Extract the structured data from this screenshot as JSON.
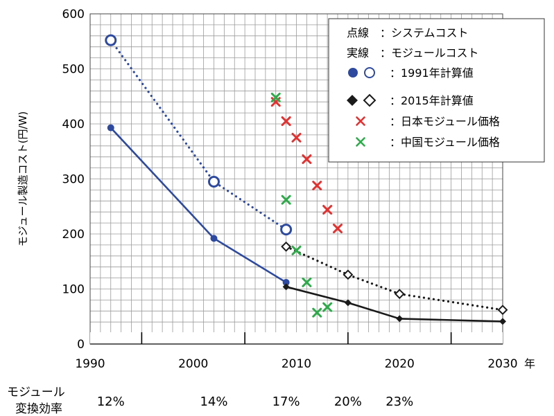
{
  "chart_data": {
    "type": "line",
    "title": "",
    "xlabel": "年",
    "ylabel": "モジュール製造コスト(円/W)",
    "xlim": [
      1990,
      2030
    ],
    "ylim": [
      0,
      600
    ],
    "x_ticks": [
      1990,
      2000,
      2010,
      2020,
      2030
    ],
    "x_minor_ticks": [
      1995,
      2005,
      2015,
      2025
    ],
    "y_ticks": [
      0,
      100,
      200,
      300,
      400,
      500,
      600
    ],
    "grid": true,
    "legend_position": "top-right",
    "legend": [
      {
        "marker": "",
        "label": "点線　：システムコスト"
      },
      {
        "marker": "",
        "label": "実線　：モジュールコスト"
      },
      {
        "marker": "blue-circles",
        "label": "：1991年計算値"
      },
      {
        "marker": "black-diamonds",
        "label": "：2015年計算値"
      },
      {
        "marker": "red-x",
        "label": "：日本モジュール価格"
      },
      {
        "marker": "green-x",
        "label": "：中国モジュール価格"
      }
    ],
    "colors": {
      "blue": "#2e4a9e",
      "black": "#1a1a1a",
      "red": "#e53030",
      "green": "#2eaa4a",
      "grid": "#9a9a9a"
    },
    "series": [
      {
        "key": "s1991_system",
        "style": "dotted",
        "marker": "open-circle",
        "color": "#2e4a9e",
        "x": [
          1992,
          2002,
          2009
        ],
        "y": [
          552,
          295,
          208
        ]
      },
      {
        "key": "s1991_module",
        "style": "solid",
        "marker": "filled-circle",
        "color": "#2e4a9e",
        "x": [
          1992,
          2002,
          2009
        ],
        "y": [
          393,
          192,
          112
        ]
      },
      {
        "key": "s2015_system",
        "style": "dotted",
        "marker": "open-diamond",
        "color": "#1a1a1a",
        "x": [
          2009,
          2015,
          2020,
          2030
        ],
        "y": [
          177,
          126,
          91,
          62
        ]
      },
      {
        "key": "s2015_module",
        "style": "solid",
        "marker": "filled-diamond",
        "color": "#1a1a1a",
        "x": [
          2009,
          2015,
          2020,
          2030
        ],
        "y": [
          104,
          75,
          46,
          41
        ]
      },
      {
        "key": "japan_price",
        "style": "none",
        "marker": "x",
        "color": "#e53030",
        "x": [
          2008,
          2009,
          2010,
          2011,
          2012,
          2013,
          2014
        ],
        "y": [
          440,
          405,
          375,
          336,
          288,
          244,
          210
        ]
      },
      {
        "key": "china_price",
        "style": "none",
        "marker": "x",
        "color": "#2eaa4a",
        "x": [
          2008,
          2009,
          2010,
          2011,
          2012,
          2013
        ],
        "y": [
          448,
          262,
          170,
          112,
          57,
          67
        ]
      }
    ],
    "efficiency": {
      "label_line1": "モジュール",
      "label_line2": "変換効率",
      "items": [
        {
          "x": 1992,
          "text": "12%"
        },
        {
          "x": 2002,
          "text": "14%"
        },
        {
          "x": 2009,
          "text": "17%"
        },
        {
          "x": 2015,
          "text": "20%"
        },
        {
          "x": 2020,
          "text": "23%"
        }
      ]
    }
  }
}
